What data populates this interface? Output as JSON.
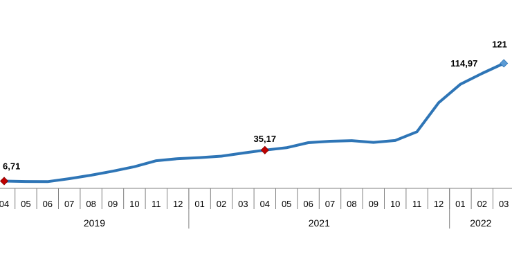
{
  "chart_data": {
    "type": "line",
    "categories": [
      "04",
      "05",
      "06",
      "07",
      "08",
      "09",
      "10",
      "11",
      "12",
      "01",
      "02",
      "03",
      "04",
      "05",
      "06",
      "07",
      "08",
      "09",
      "10",
      "11",
      "12",
      "01",
      "02",
      "03"
    ],
    "values": [
      6.71,
      6.3,
      6.2,
      8.9,
      12.1,
      15.8,
      19.9,
      25.4,
      27.3,
      28.3,
      29.6,
      32.5,
      35.17,
      37.4,
      42.0,
      43.3,
      43.9,
      42.3,
      44.0,
      52.0,
      78.8,
      95.7,
      105.7,
      114.97
    ],
    "year_groups": [
      {
        "label": "2019",
        "span": 9
      },
      {
        "label": "2021",
        "span": 12
      },
      {
        "label": "2022",
        "span": 3
      }
    ],
    "annotations": [
      {
        "index": 0,
        "text": "6,71",
        "marker": "diamond-red"
      },
      {
        "index": 12,
        "text": "35,17",
        "marker": "diamond-red"
      },
      {
        "index": 22,
        "text": "114,97",
        "marker": "none"
      },
      {
        "index": 23,
        "text": "121",
        "marker": "diamond-blue"
      }
    ],
    "ylim": [
      0,
      135
    ],
    "grid": false,
    "line_color": "#2e75b6",
    "marker_red": "#c00000",
    "marker_blue": "#5b9bd5"
  }
}
